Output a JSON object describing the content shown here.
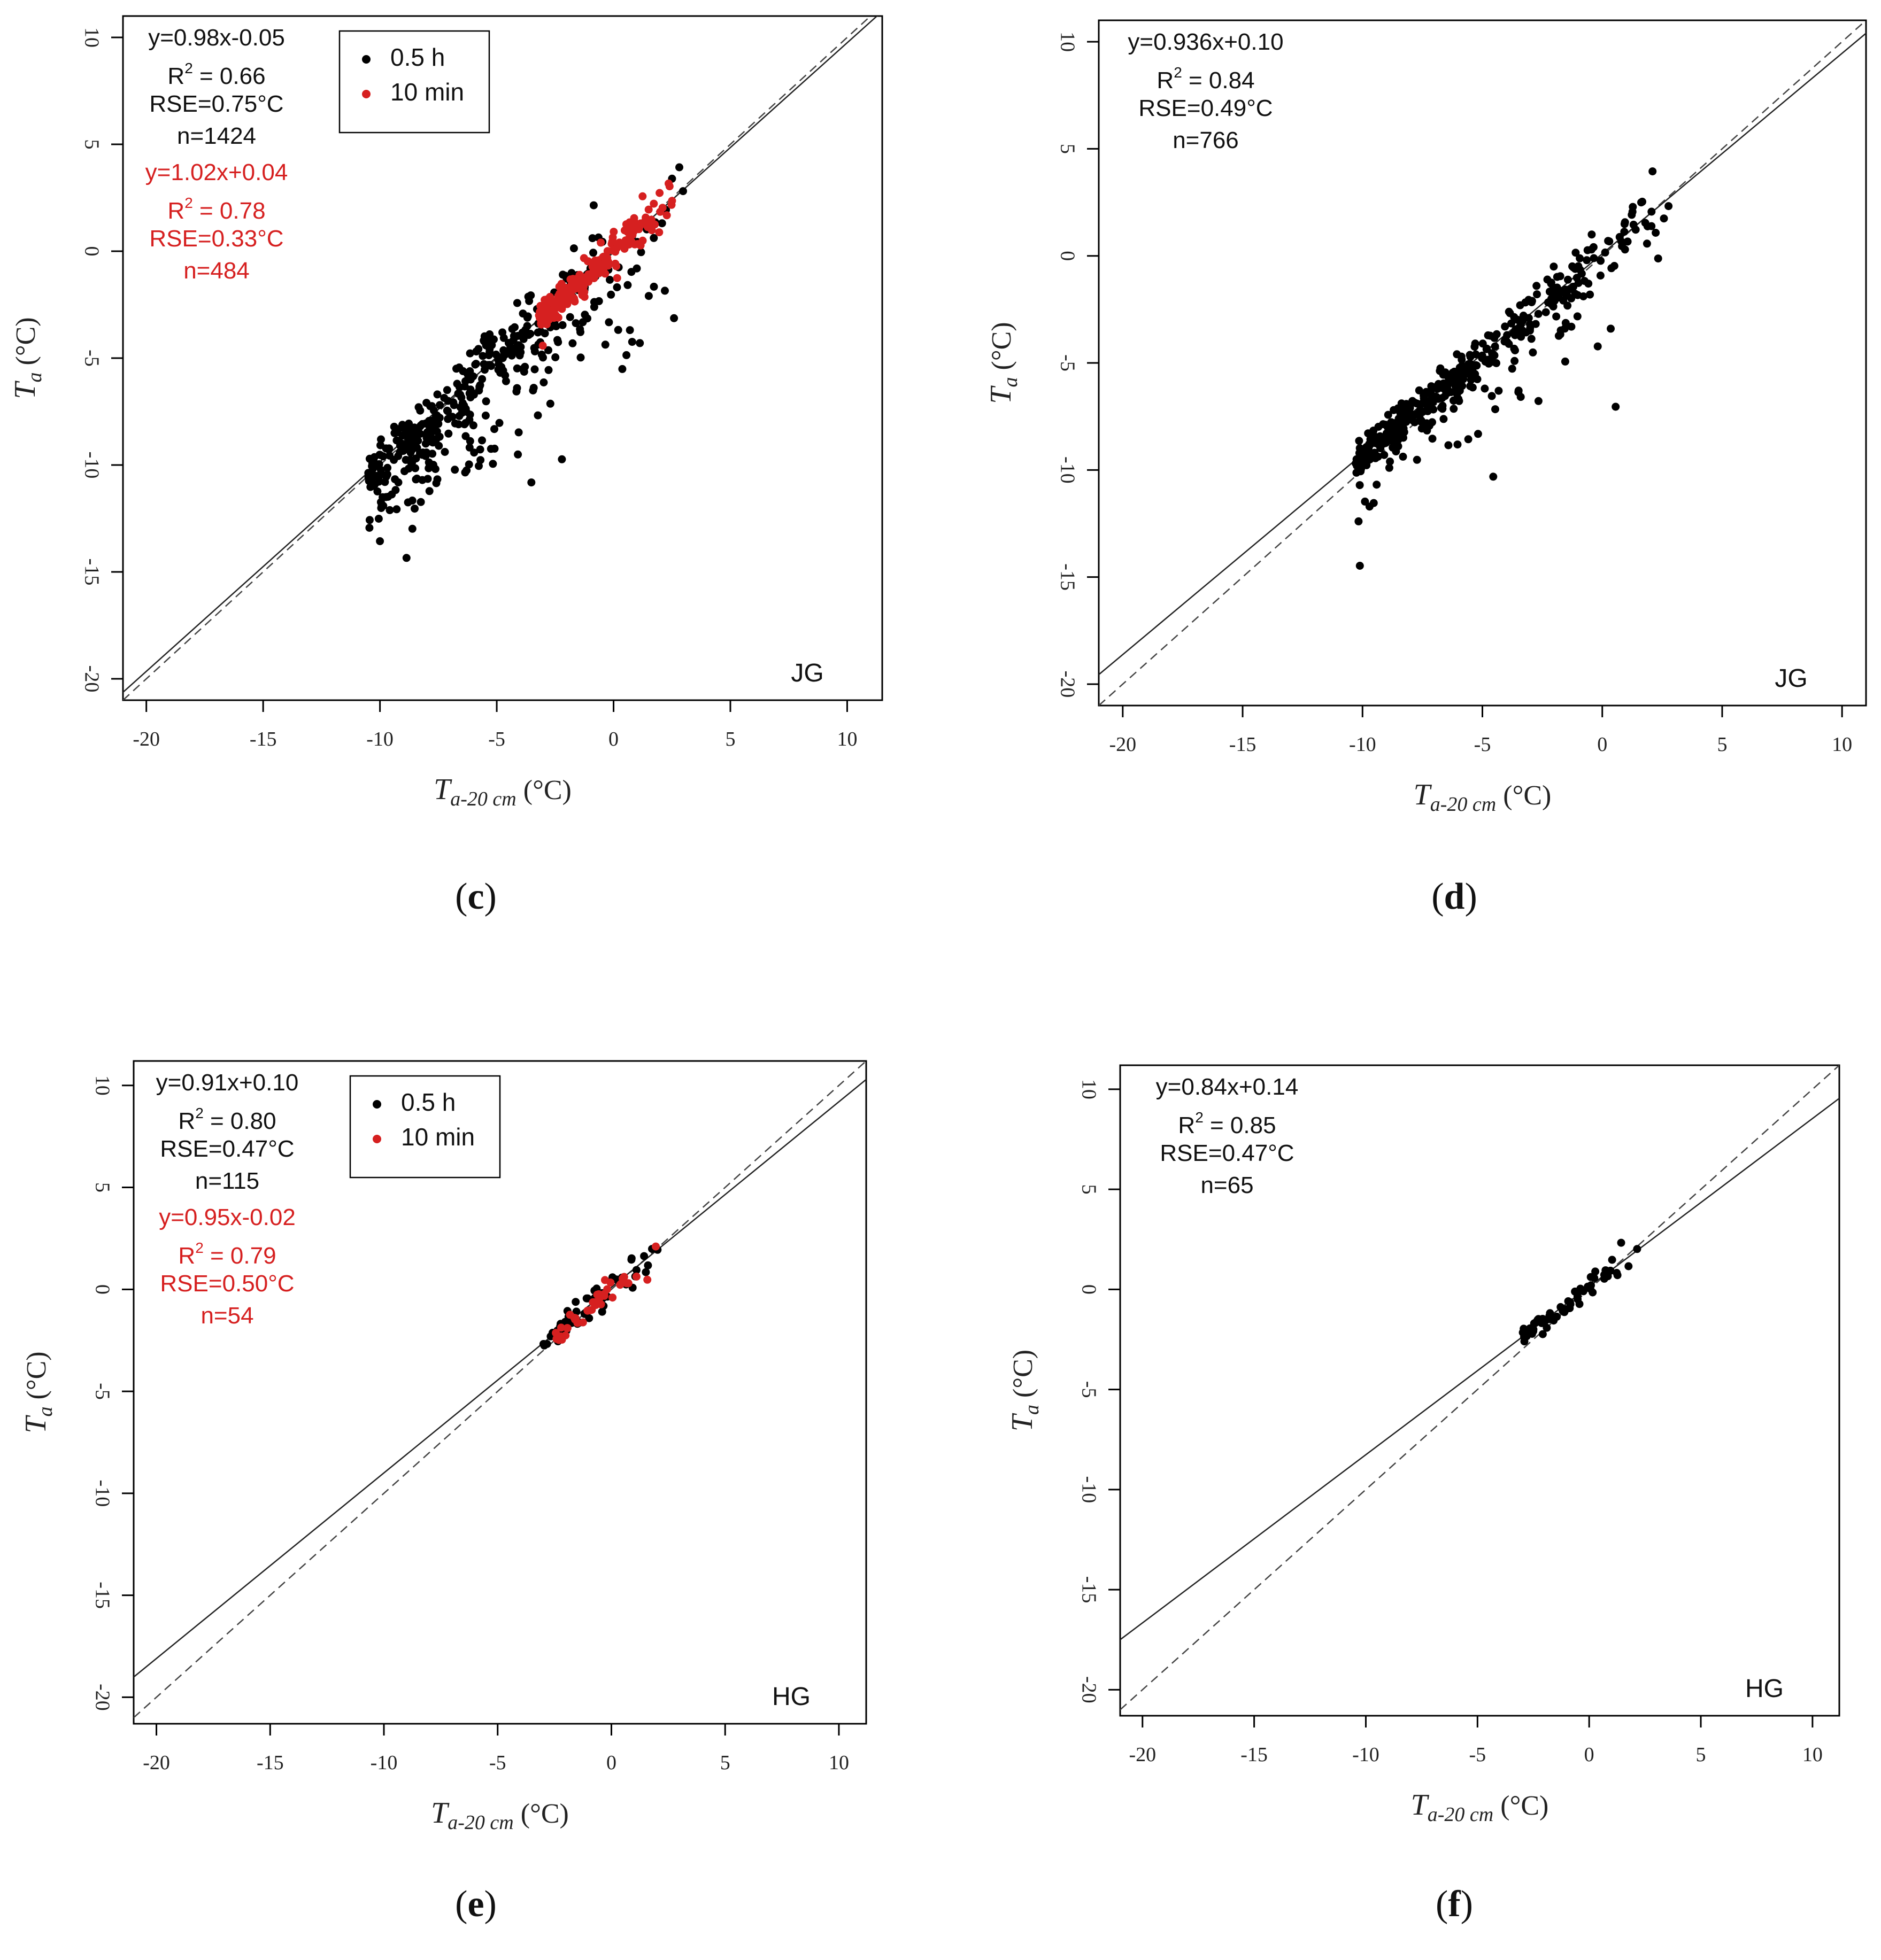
{
  "colors": {
    "half_hour": "#000000",
    "ten_min": "#d62020",
    "axis": "#000000",
    "fit_line": "#222222",
    "one_to_one": "#444444"
  },
  "chart_data": [
    {
      "id": "c",
      "type": "scatter",
      "panel_label": "(c)",
      "site": "JG",
      "xlabel_main": "T",
      "xlabel_sub": "a-20 cm",
      "xlabel_unit": " (°C)",
      "ylabel_main": "T",
      "ylabel_sub": "a",
      "ylabel_unit": " (°C)",
      "xlim": [
        -21,
        11.5
      ],
      "ylim": [
        -21,
        11
      ],
      "xticks": [
        -20,
        -15,
        -10,
        -5,
        0,
        5,
        10
      ],
      "yticks": [
        -20,
        -15,
        -10,
        -5,
        0,
        5,
        10
      ],
      "legend": {
        "shown": true,
        "entries": [
          "0.5 h",
          "10 min"
        ]
      },
      "stats": [
        {
          "series": "0.5 h",
          "eq": "y=0.98x-0.05",
          "r2": "0.66",
          "rse": "RSE=0.75°C",
          "n": "n=1424"
        },
        {
          "series": "10 min",
          "eq": "y=1.02x+0.04",
          "r2": "0.78",
          "rse": "RSE=0.33°C",
          "n": "n=484"
        }
      ],
      "fit_line": {
        "slope": 0.98,
        "intercept": -0.05
      },
      "cloud": [
        {
          "series": "0.5 h",
          "count": 420,
          "xmin": -10.5,
          "xmax": 3.2,
          "slope": 0.98,
          "intercept": -0.05,
          "spread": 0.9,
          "skew": 0.45
        },
        {
          "series": "10 min",
          "count": 220,
          "xmin": -3.2,
          "xmax": 3.0,
          "slope": 1.02,
          "intercept": 0.04,
          "spread": 0.45,
          "skew": 0.05
        }
      ]
    },
    {
      "id": "d",
      "type": "scatter",
      "panel_label": "(d)",
      "site": "JG",
      "xlabel_main": "T",
      "xlabel_sub": "a-20 cm",
      "xlabel_unit": " (°C)",
      "ylabel_main": "T",
      "ylabel_sub": "a",
      "ylabel_unit": " (°C)",
      "xlim": [
        -21,
        11
      ],
      "ylim": [
        -21,
        11
      ],
      "xticks": [
        -20,
        -15,
        -10,
        -5,
        0,
        5,
        10
      ],
      "yticks": [
        -20,
        -15,
        -10,
        -5,
        0,
        5,
        10
      ],
      "legend": {
        "shown": false,
        "entries": []
      },
      "stats": [
        {
          "series": "0.5 h",
          "eq": "y=0.936x+0.10",
          "r2": "0.84",
          "rse": "RSE=0.49°C",
          "n": "n=766"
        }
      ],
      "fit_line": {
        "slope": 0.936,
        "intercept": 0.1
      },
      "cloud": [
        {
          "series": "0.5 h",
          "count": 420,
          "xmin": -10.3,
          "xmax": 3.2,
          "slope": 0.936,
          "intercept": 0.1,
          "spread": 0.65,
          "skew": 0.25
        }
      ]
    },
    {
      "id": "e",
      "type": "scatter",
      "panel_label": "(e)",
      "site": "HG",
      "xlabel_main": "T",
      "xlabel_sub": "a-20 cm",
      "xlabel_unit": " (°C)",
      "ylabel_main": "T",
      "ylabel_sub": "a",
      "ylabel_unit": " (°C)",
      "xlim": [
        -21,
        11.2
      ],
      "ylim": [
        -21.3,
        11.2
      ],
      "xticks": [
        -20,
        -15,
        -10,
        -5,
        0,
        5,
        10
      ],
      "yticks": [
        -20,
        -15,
        -10,
        -5,
        0,
        5,
        10
      ],
      "legend": {
        "shown": true,
        "entries": [
          "0.5 h",
          "10 min"
        ]
      },
      "stats": [
        {
          "series": "0.5 h",
          "eq": "y=0.91x+0.10",
          "r2": "0.80",
          "rse": "RSE=0.47°C",
          "n": "n=115"
        },
        {
          "series": "10 min",
          "eq": "y=0.95x-0.02",
          "r2": "0.79",
          "rse": "RSE=0.50°C",
          "n": "n=54"
        }
      ],
      "fit_line": {
        "slope": 0.91,
        "intercept": 0.1
      },
      "cloud": [
        {
          "series": "0.5 h",
          "count": 60,
          "xmin": -3.0,
          "xmax": 2.4,
          "slope": 0.91,
          "intercept": 0.1,
          "spread": 0.45,
          "skew": 0.0
        },
        {
          "series": "10 min",
          "count": 45,
          "xmin": -2.5,
          "xmax": 2.3,
          "slope": 0.95,
          "intercept": -0.02,
          "spread": 0.35,
          "skew": 0.0
        }
      ]
    },
    {
      "id": "f",
      "type": "scatter",
      "panel_label": "(f)",
      "site": "HG",
      "xlabel_main": "T",
      "xlabel_sub": "a-20 cm",
      "xlabel_unit": " (°C)",
      "ylabel_main": "T",
      "ylabel_sub": "a",
      "ylabel_unit": " (°C)",
      "xlim": [
        -21,
        11.2
      ],
      "ylim": [
        -21.3,
        11.2
      ],
      "xticks": [
        -20,
        -15,
        -10,
        -5,
        0,
        5,
        10
      ],
      "yticks": [
        -20,
        -15,
        -10,
        -5,
        0,
        5,
        10
      ],
      "legend": {
        "shown": false,
        "entries": []
      },
      "stats": [
        {
          "series": "0.5 h",
          "eq": "y=0.84x+0.14",
          "r2": "0.85",
          "rse": "RSE=0.47°C",
          "n": "n=65"
        }
      ],
      "fit_line": {
        "slope": 0.84,
        "intercept": 0.14
      },
      "cloud": [
        {
          "series": "0.5 h",
          "count": 65,
          "xmin": -3.0,
          "xmax": 2.4,
          "slope": 0.84,
          "intercept": 0.14,
          "spread": 0.35,
          "skew": 0.0
        }
      ]
    }
  ]
}
